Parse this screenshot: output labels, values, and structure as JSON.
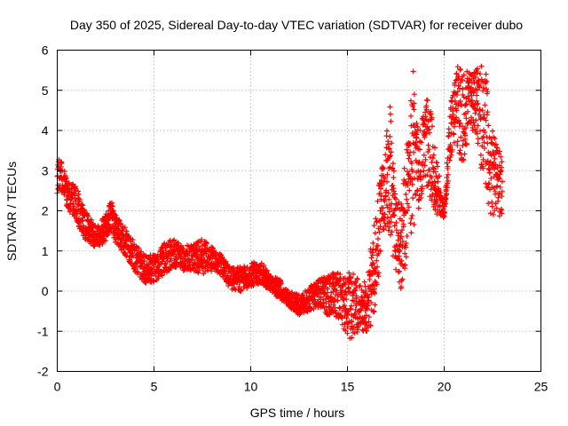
{
  "chart_data": {
    "type": "scatter",
    "title": "Day 350 of 2025, Sidereal Day-to-day VTEC variation (SDTVAR) for receiver dubo",
    "xlabel": "GPS time / hours",
    "ylabel": "SDTVAR / TECUs",
    "xlim": [
      0,
      25
    ],
    "ylim": [
      -2,
      6
    ],
    "xticks": [
      0,
      5,
      10,
      15,
      20,
      25
    ],
    "yticks": [
      -2,
      -1,
      0,
      1,
      2,
      3,
      4,
      5,
      6
    ],
    "xtick_labels": [
      "0",
      "5",
      "10",
      "15",
      "20",
      "25"
    ],
    "ytick_labels": [
      "-2",
      "-1",
      "0",
      "1",
      "2",
      "3",
      "4",
      "5",
      "6"
    ],
    "grid": true,
    "marker": "+",
    "series": [
      {
        "name": "SDTVAR",
        "color": "#ff0000",
        "envelope_x": [
          0,
          0.2,
          0.5,
          1,
          1.5,
          2,
          2.5,
          2.8,
          3,
          3.5,
          4,
          4.5,
          5,
          5.5,
          6,
          6.5,
          7,
          7.5,
          8,
          8.5,
          9,
          9.5,
          10,
          10.5,
          11,
          11.5,
          12,
          12.5,
          13,
          13.5,
          14,
          14.5,
          15,
          15.3,
          15.6,
          16,
          16.3,
          16.6,
          16.9,
          17.2,
          17.5,
          17.8,
          18.1,
          18.4,
          18.7,
          19,
          19.3,
          19.6,
          20,
          20.3,
          20.6,
          20.9,
          21.2,
          21.5,
          21.8,
          22.1,
          22.4,
          22.7,
          23
        ],
        "envelope_min": [
          2.4,
          2.5,
          2.1,
          1.7,
          1.2,
          1.1,
          1.2,
          1.5,
          1.2,
          0.9,
          0.5,
          0.2,
          0.2,
          0.4,
          0.6,
          0.5,
          0.5,
          0.4,
          0.5,
          0.4,
          0.0,
          0.0,
          0.1,
          0.2,
          0.0,
          -0.2,
          -0.4,
          -0.6,
          -0.5,
          -0.4,
          -0.6,
          -0.7,
          -1.1,
          -1.3,
          -0.9,
          -1.1,
          -0.8,
          0.2,
          1.5,
          1.3,
          0.4,
          -0.2,
          1.0,
          1.6,
          2.0,
          2.8,
          2.2,
          1.9,
          1.8,
          3.2,
          3.8,
          2.8,
          3.7,
          4.0,
          3.2,
          2.7,
          1.8,
          1.9,
          1.8
        ],
        "envelope_max": [
          3.4,
          3.3,
          2.8,
          2.6,
          2.0,
          1.6,
          1.9,
          2.3,
          1.9,
          1.6,
          1.2,
          0.9,
          0.9,
          1.2,
          1.3,
          1.1,
          1.2,
          1.3,
          1.1,
          0.9,
          0.6,
          0.6,
          0.7,
          0.8,
          0.4,
          0.3,
          0.0,
          -0.1,
          0.1,
          0.3,
          0.4,
          0.5,
          0.4,
          0.7,
          0.2,
          0.3,
          1.5,
          2.6,
          3.5,
          4.6,
          2.3,
          2.4,
          4.0,
          5.5,
          3.8,
          4.9,
          4.6,
          3.4,
          2.0,
          4.6,
          5.5,
          5.8,
          5.5,
          5.4,
          5.6,
          5.9,
          4.1,
          3.8,
          3.3
        ]
      }
    ]
  }
}
